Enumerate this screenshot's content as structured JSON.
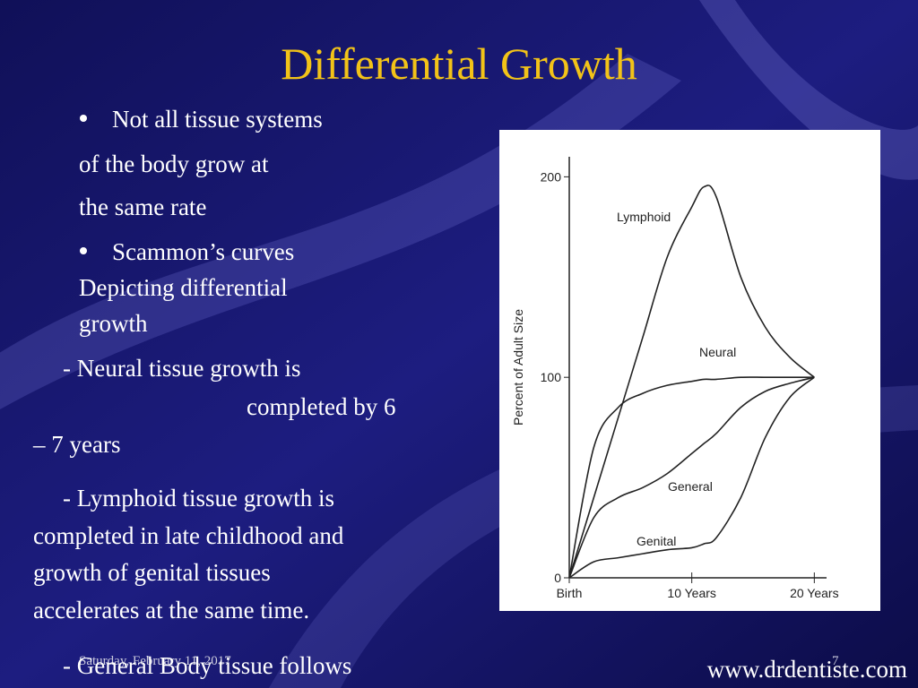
{
  "slide": {
    "title": "Differential Growth",
    "bullets": [
      "Not all tissue systems",
      "Scammon’s curves"
    ],
    "lines": [
      "of the body grow at",
      "the same rate",
      "Depicting differential",
      "growth",
      "-  Neural tissue growth is",
      "completed by 6",
      "– 7 years",
      "-  Lymphoid tissue     growth is",
      "completed in late childhood and",
      "growth of genital tissues",
      "accelerates at the same time.",
      "-  General Body tissue follows"
    ],
    "footer_date": "Saturday, February 11, 2017",
    "page_number": "7",
    "website": "www.drdentiste.com"
  },
  "chart_data": {
    "type": "line",
    "ylabel": "Percent of Adult Size",
    "x": [
      0,
      2,
      4,
      6,
      8,
      10,
      11,
      12,
      14,
      16,
      18,
      20
    ],
    "xlim": [
      0,
      21
    ],
    "xticks": [
      {
        "value": 0,
        "label": "Birth"
      },
      {
        "value": 10,
        "label": "10 Years"
      },
      {
        "value": 20,
        "label": "20 Years"
      }
    ],
    "ylim": [
      0,
      210
    ],
    "yticks": [
      0,
      100,
      200
    ],
    "series": [
      {
        "name": "Lymphoid",
        "color": "#222222",
        "values": [
          0,
          40,
          80,
          120,
          160,
          185,
          195,
          190,
          150,
          125,
          110,
          100
        ]
      },
      {
        "name": "Neural",
        "color": "#222222",
        "values": [
          0,
          65,
          85,
          92,
          96,
          98,
          99,
          99,
          100,
          100,
          100,
          100
        ]
      },
      {
        "name": "General",
        "color": "#222222",
        "values": [
          0,
          30,
          40,
          45,
          52,
          62,
          67,
          72,
          85,
          93,
          97,
          100
        ]
      },
      {
        "name": "Genital",
        "color": "#222222",
        "values": [
          0,
          8,
          10,
          12,
          14,
          15,
          17,
          20,
          40,
          70,
          90,
          100
        ]
      }
    ]
  }
}
